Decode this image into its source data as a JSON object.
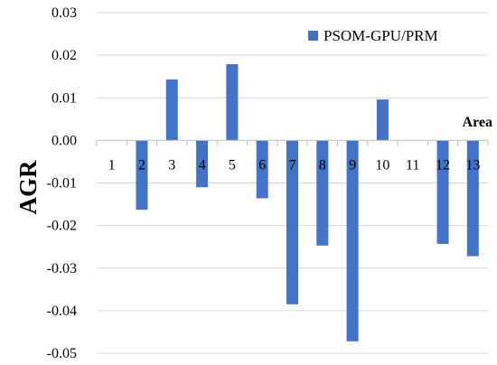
{
  "chart_data": {
    "type": "bar",
    "title": "",
    "xlabel": "Area",
    "ylabel": "AGR",
    "ylim": [
      -0.05,
      0.03
    ],
    "yticks": [
      0.03,
      0.02,
      0.01,
      0.0,
      -0.01,
      -0.02,
      -0.03,
      -0.04,
      -0.05
    ],
    "ytick_labels": [
      "0.03",
      "0.02",
      "0.01",
      "0.00",
      "-0.01",
      "-0.02",
      "-0.03",
      "-0.04",
      "-0.05"
    ],
    "grid": true,
    "legend_position": "top-right",
    "categories": [
      "1",
      "2",
      "3",
      "4",
      "5",
      "6",
      "7",
      "8",
      "9",
      "10",
      "11",
      "12",
      "13"
    ],
    "series": [
      {
        "name": "PSOM-GPU/PRM",
        "color": "#4472C4",
        "values": [
          0.0,
          -0.0163,
          0.0143,
          -0.011,
          0.0179,
          -0.0136,
          -0.0385,
          -0.0247,
          -0.0472,
          0.0096,
          0.0,
          -0.0243,
          -0.0272
        ]
      }
    ]
  }
}
